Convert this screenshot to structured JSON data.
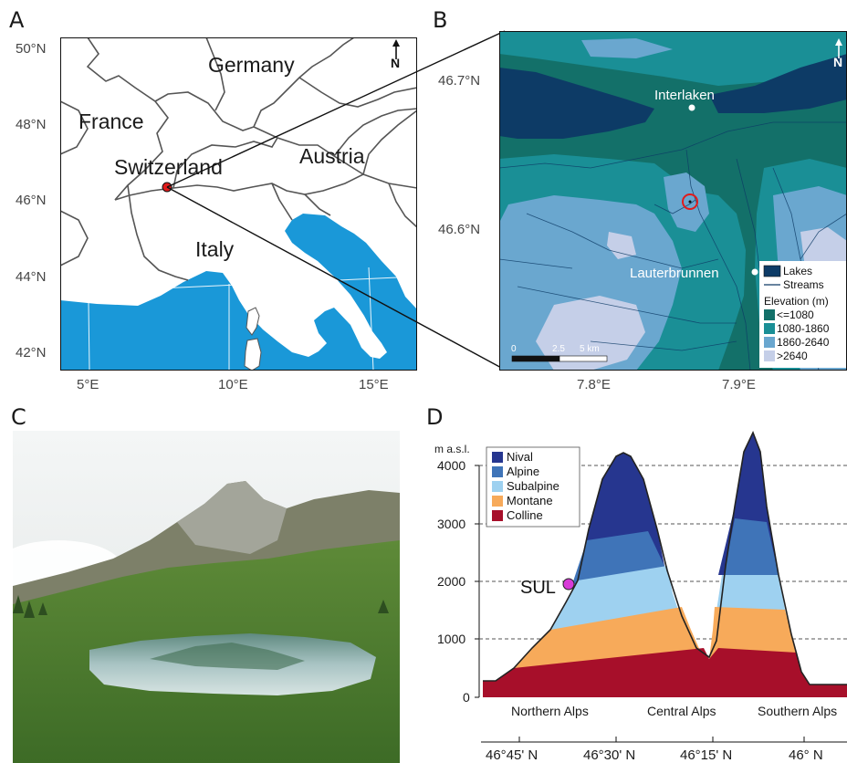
{
  "panels": {
    "a": {
      "letter": "A",
      "y_ticks": [
        "50°N",
        "48°N",
        "46°N",
        "44°N",
        "42°N"
      ],
      "x_ticks": [
        "5°E",
        "10°E",
        "15°E"
      ],
      "countries": [
        "Germany",
        "France",
        "Switzerland",
        "Austria",
        "Italy"
      ],
      "north_label": "N",
      "colors": {
        "sea": "#1a98d8",
        "land": "#ffffff",
        "border": "#555555",
        "site": "#e01b1b"
      }
    },
    "b": {
      "letter": "B",
      "y_ticks": [
        "46.7°N",
        "46.6°N"
      ],
      "x_ticks": [
        "7.8°E",
        "7.9°E"
      ],
      "towns": [
        "Interlaken",
        "Lauterbrunnen"
      ],
      "north_label": "N",
      "legend": {
        "lakes": "Lakes",
        "streams": "Streams",
        "elevation_title": "Elevation (m)",
        "classes": [
          "<=1080",
          "1080-1860",
          "1860-2640",
          ">2640"
        ]
      },
      "scale_bar": [
        "0",
        "2.5",
        "5 km"
      ],
      "colors": {
        "lakes": "#0d3b66",
        "c1": "#137069",
        "c2": "#1a8f96",
        "c3": "#6aa7cf",
        "c4": "#c5cfe8"
      }
    },
    "c": {
      "letter": "C"
    },
    "d": {
      "letter": "D",
      "y_unit": "m a.s.l.",
      "y_ticks": [
        "4000",
        "3000",
        "2000",
        "1000",
        "0"
      ],
      "regions": [
        "Northern Alps",
        "Central Alps",
        "Southern Alps"
      ],
      "lat_ticks": [
        "46°45' N",
        "46°30' N",
        "46°15' N",
        "46° N"
      ],
      "site_label": "SUL",
      "legend": [
        "Nival",
        "Alpine",
        "Subalpine",
        "Montane",
        "Colline"
      ],
      "colors": {
        "nival": "#26368f",
        "alpine": "#3f74b8",
        "subalpine": "#9ed1f0",
        "montane": "#f7aa5a",
        "colline": "#a70f2a",
        "site": "#d83ad8"
      }
    }
  }
}
